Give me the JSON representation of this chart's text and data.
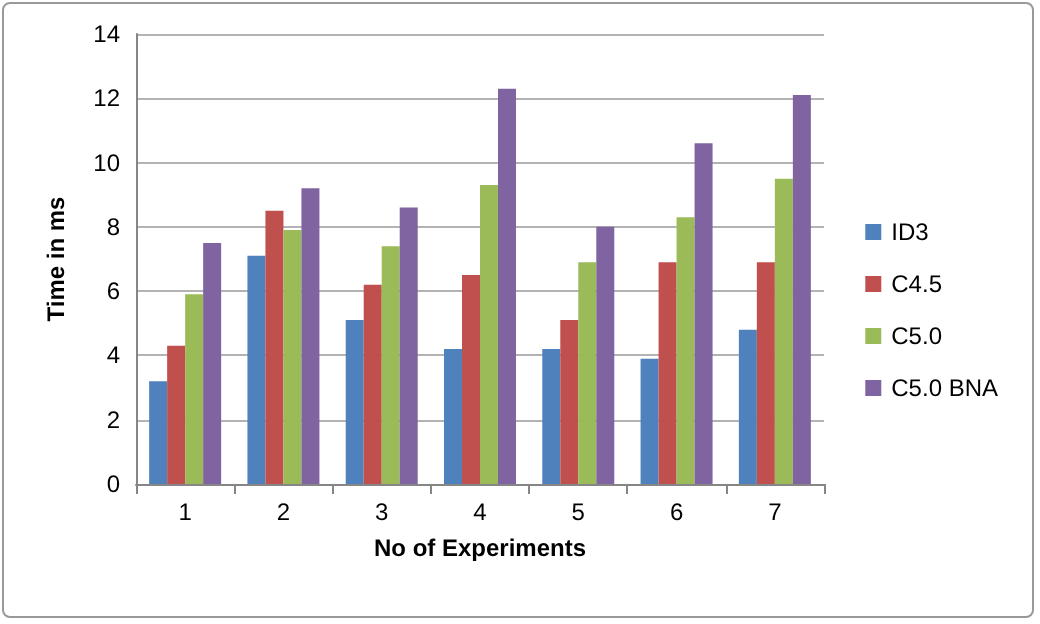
{
  "chart_data": {
    "type": "bar",
    "xlabel": "No of Experiments",
    "ylabel": "Time in ms",
    "categories": [
      "1",
      "2",
      "3",
      "4",
      "5",
      "6",
      "7"
    ],
    "series": [
      {
        "name": "ID3",
        "color": "#4f81bd",
        "values": [
          3.2,
          7.1,
          5.1,
          4.2,
          4.2,
          3.9,
          4.8
        ]
      },
      {
        "name": "C4.5",
        "color": "#c0504d",
        "values": [
          4.3,
          8.5,
          6.2,
          6.5,
          5.1,
          6.9,
          6.9
        ]
      },
      {
        "name": "C5.0",
        "color": "#9bbb59",
        "values": [
          5.9,
          7.9,
          7.4,
          9.3,
          6.9,
          8.3,
          9.5
        ]
      },
      {
        "name": "C5.0 BNA",
        "color": "#8064a2",
        "values": [
          7.5,
          9.2,
          8.6,
          12.3,
          8.0,
          10.6,
          12.1
        ]
      }
    ],
    "ylim": [
      0,
      14
    ],
    "yticks": [
      0,
      2,
      4,
      6,
      8,
      10,
      12,
      14
    ],
    "grid": "y",
    "legend": "right"
  }
}
